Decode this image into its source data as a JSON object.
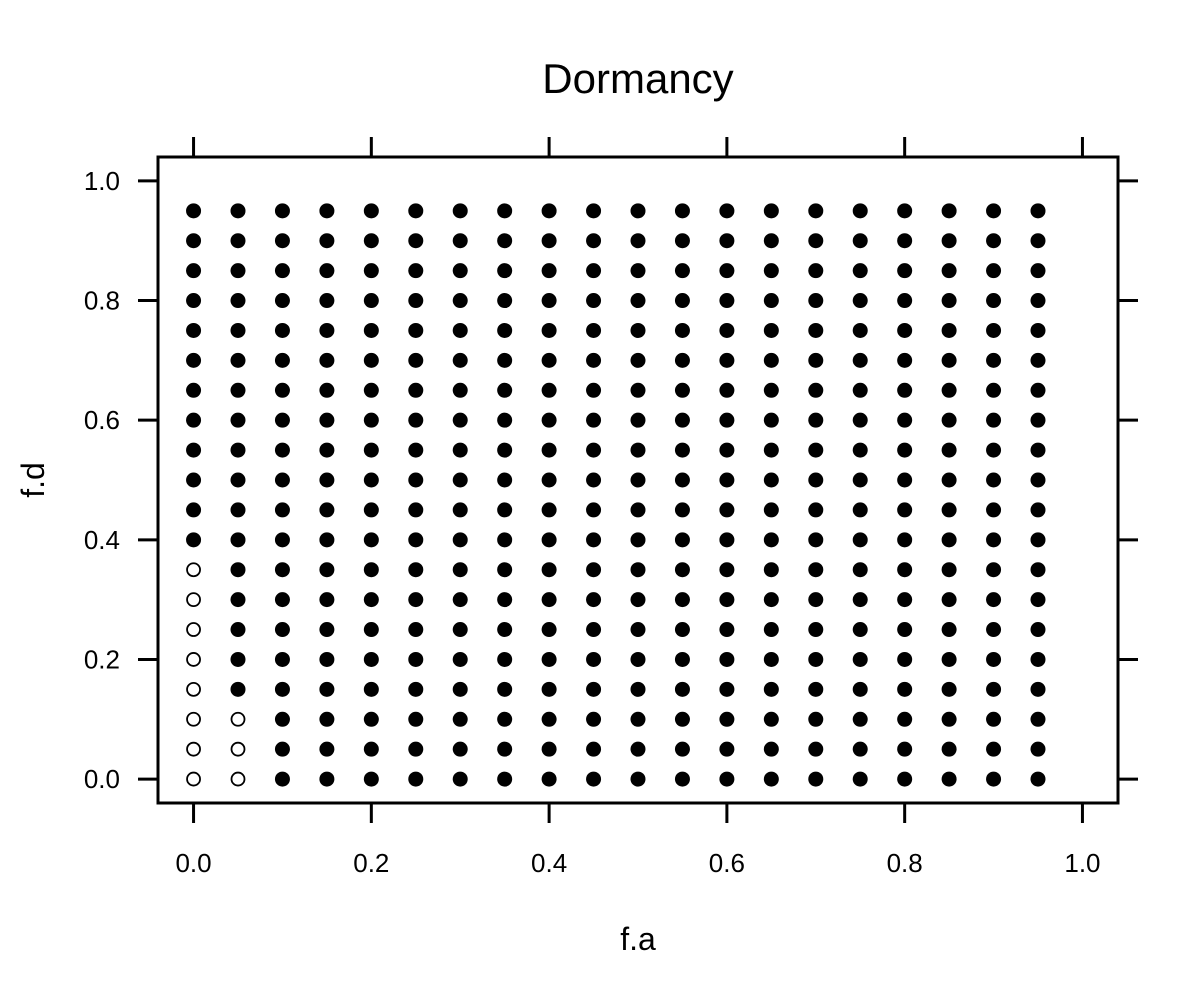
{
  "chart_data": {
    "type": "scatter",
    "title": "Dormancy",
    "xlabel": "f.a",
    "ylabel": "f.d",
    "xlim": [
      -0.04,
      1.04
    ],
    "ylim": [
      -0.04,
      1.04
    ],
    "xticks": [
      0.0,
      0.2,
      0.4,
      0.6,
      0.8,
      1.0
    ],
    "yticks": [
      0.0,
      0.2,
      0.4,
      0.6,
      0.8,
      1.0
    ],
    "xtick_labels": [
      "0.0",
      "0.2",
      "0.4",
      "0.6",
      "0.8",
      "1.0"
    ],
    "ytick_labels": [
      "0.0",
      "0.2",
      "0.4",
      "0.6",
      "0.8",
      "1.0"
    ],
    "grid": false,
    "x": [
      0.0,
      0.05,
      0.1,
      0.15,
      0.2,
      0.25,
      0.3,
      0.35,
      0.4,
      0.45,
      0.5,
      0.55,
      0.6,
      0.65,
      0.7,
      0.75,
      0.8,
      0.85,
      0.9,
      0.95
    ],
    "y": [
      0.0,
      0.05,
      0.1,
      0.15,
      0.2,
      0.25,
      0.3,
      0.35,
      0.4,
      0.45,
      0.5,
      0.55,
      0.6,
      0.65,
      0.7,
      0.75,
      0.8,
      0.85,
      0.9,
      0.95
    ],
    "filled_description": "All grid points are filled except the open points listed",
    "open_points": [
      [
        0.0,
        0.0
      ],
      [
        0.0,
        0.05
      ],
      [
        0.0,
        0.1
      ],
      [
        0.0,
        0.15
      ],
      [
        0.0,
        0.2
      ],
      [
        0.0,
        0.25
      ],
      [
        0.0,
        0.3
      ],
      [
        0.0,
        0.35
      ],
      [
        0.05,
        0.0
      ],
      [
        0.05,
        0.05
      ],
      [
        0.05,
        0.1
      ]
    ],
    "colors": {
      "filled": "#000000",
      "open_fill": "#ffffff",
      "stroke": "#000000"
    }
  }
}
